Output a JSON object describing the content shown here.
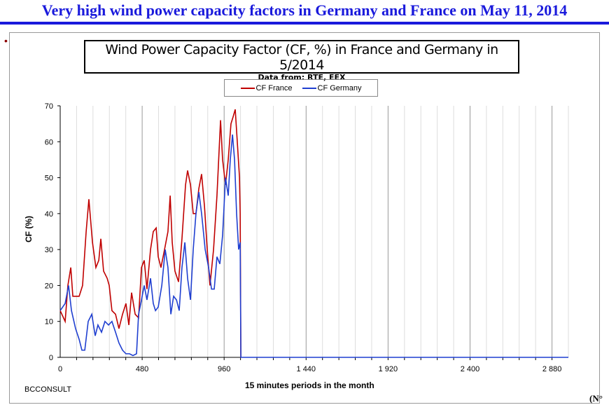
{
  "slide": {
    "title": "Very high wind power capacity factors in Germany and France on May 11, 2014",
    "credit": "BCCONSULT",
    "corner_text": "(N°"
  },
  "chart_data": {
    "type": "line",
    "title": "Wind Power Capacity Factor (CF, %) in France and Germany in 5/2014",
    "subtitle": "Data from: RTE, EEX",
    "xlabel": "15 minutes periods in the month",
    "ylabel": "CF (%)",
    "xlim": [
      0,
      2976
    ],
    "ylim": [
      0,
      70
    ],
    "xticks": [
      0,
      480,
      960,
      1440,
      1920,
      2400,
      2880
    ],
    "xtick_labels": [
      "0",
      "480",
      "960",
      "1 440",
      "1 920",
      "2 400",
      "2 880"
    ],
    "yticks": [
      0,
      10,
      20,
      30,
      40,
      50,
      60,
      70
    ],
    "legend_position": "top-center",
    "grid": true,
    "series": [
      {
        "name": "CF France",
        "color": "#c00000",
        "x": [
          0,
          29,
          45,
          62,
          74,
          111,
          131,
          152,
          168,
          189,
          209,
          226,
          238,
          254,
          275,
          287,
          303,
          324,
          344,
          365,
          385,
          402,
          418,
          439,
          459,
          476,
          492,
          508,
          529,
          545,
          562,
          574,
          590,
          611,
          631,
          644,
          656,
          672,
          693,
          713,
          734,
          746,
          763,
          779,
          795,
          812,
          828,
          845,
          861,
          877,
          898,
          918,
          939,
          951,
          968,
          984,
          1000,
          1013,
          1025,
          1037,
          1050,
          1054,
          1058
        ],
        "y": [
          13,
          10,
          20,
          25,
          17,
          17,
          20,
          35,
          44,
          32,
          25,
          27,
          33,
          24,
          22,
          20,
          13,
          12,
          8,
          12,
          15,
          9,
          18,
          12,
          11,
          25,
          27,
          19,
          30,
          35,
          36,
          28,
          25,
          30,
          35,
          45,
          32,
          24,
          21,
          33,
          48,
          52,
          48,
          40,
          40,
          47,
          51,
          42,
          30,
          20,
          30,
          45,
          66,
          55,
          48,
          55,
          65,
          67,
          69,
          60,
          50,
          40,
          0
        ]
      },
      {
        "name": "CF Germany",
        "color": "#1f3fd0",
        "x": [
          0,
          29,
          49,
          66,
          90,
          111,
          127,
          144,
          164,
          185,
          205,
          221,
          242,
          262,
          283,
          303,
          324,
          344,
          365,
          385,
          406,
          426,
          447,
          459,
          476,
          492,
          508,
          529,
          545,
          558,
          574,
          595,
          615,
          631,
          648,
          664,
          681,
          697,
          713,
          730,
          746,
          763,
          779,
          795,
          812,
          828,
          849,
          869,
          886,
          902,
          918,
          935,
          951,
          968,
          984,
          996,
          1009,
          1021,
          1033,
          1045,
          1054,
          1058,
          2976
        ],
        "y": [
          13,
          15,
          20,
          13,
          8,
          5,
          2,
          2,
          10,
          12,
          6,
          9,
          7,
          10,
          9,
          10,
          7,
          4,
          2,
          1,
          1,
          0.5,
          1,
          12,
          16,
          20,
          16,
          22,
          15,
          13,
          14,
          20,
          30,
          25,
          12,
          17,
          16,
          13,
          25,
          32,
          22,
          16,
          30,
          40,
          46,
          40,
          30,
          25,
          19,
          19,
          28,
          26,
          34,
          50,
          45,
          55,
          62,
          55,
          40,
          30,
          32,
          0,
          0
        ]
      }
    ]
  }
}
